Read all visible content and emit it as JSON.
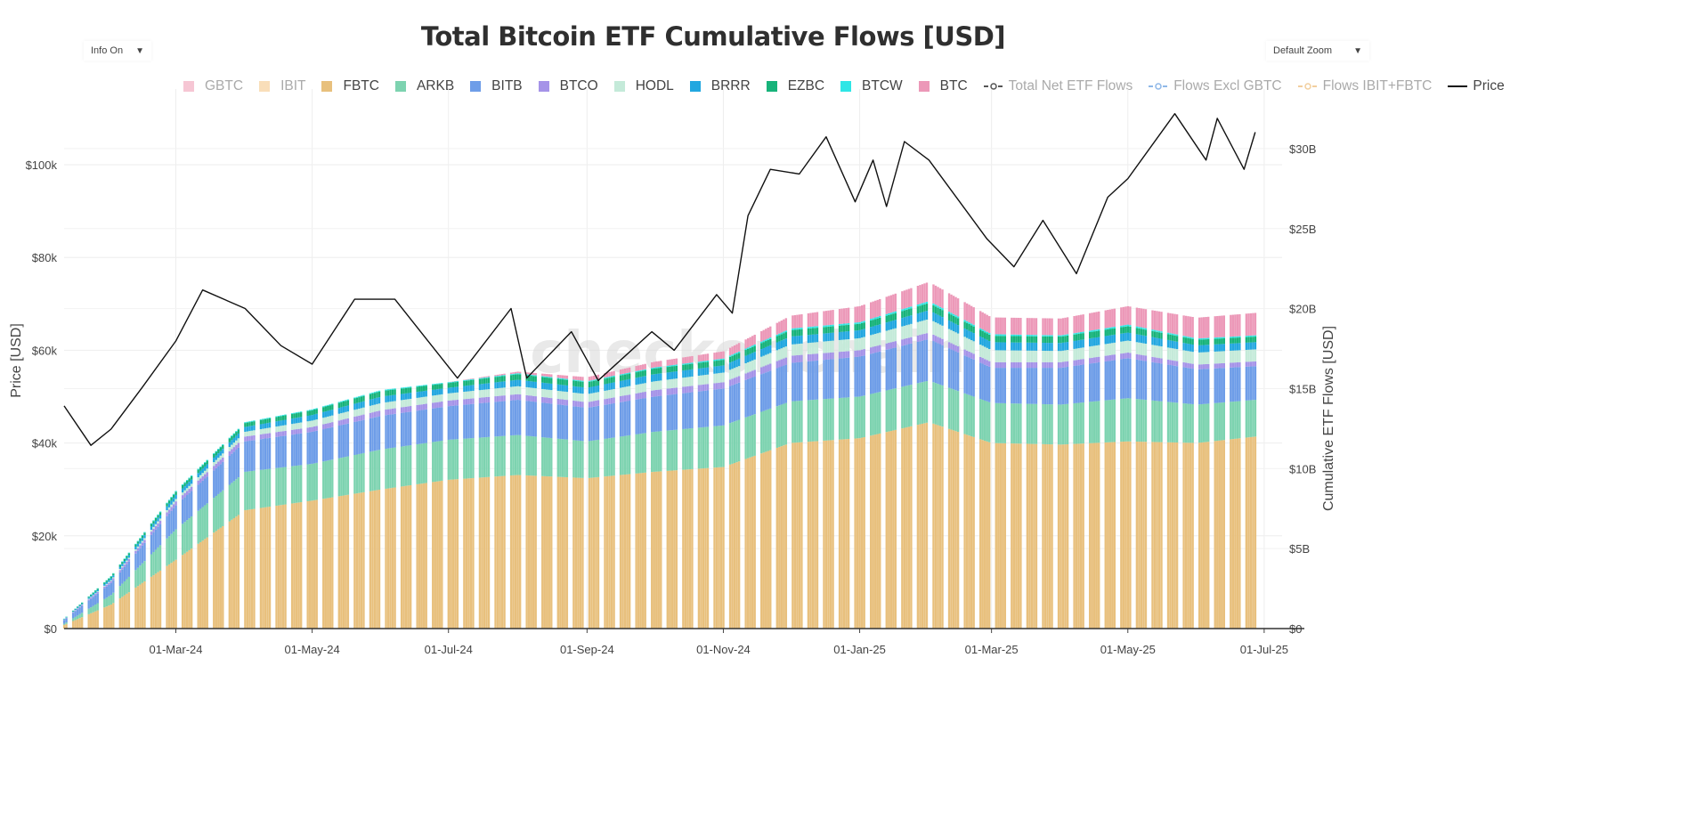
{
  "title": "Total Bitcoin ETF Cumulative Flows [USD]",
  "controls": {
    "info_label": "Info On",
    "zoom_label": "Default Zoom",
    "arrow": "▼"
  },
  "watermark": "checkonchain",
  "legend": [
    {
      "name": "GBTC",
      "color": "#f4b8c9",
      "visible": false,
      "kind": "bar"
    },
    {
      "name": "IBIT",
      "color": "#f7d6a8",
      "visible": false,
      "kind": "bar"
    },
    {
      "name": "FBTC",
      "color": "#e8c07d",
      "visible": true,
      "kind": "bar"
    },
    {
      "name": "ARKB",
      "color": "#7dd3b0",
      "visible": true,
      "kind": "bar"
    },
    {
      "name": "BITB",
      "color": "#6e9de8",
      "visible": true,
      "kind": "bar"
    },
    {
      "name": "BTCO",
      "color": "#a593e8",
      "visible": true,
      "kind": "bar"
    },
    {
      "name": "HODL",
      "color": "#c4ead9",
      "visible": true,
      "kind": "bar"
    },
    {
      "name": "BRRR",
      "color": "#22a7e0",
      "visible": true,
      "kind": "bar"
    },
    {
      "name": "EZBC",
      "color": "#17b37a",
      "visible": true,
      "kind": "bar"
    },
    {
      "name": "BTCW",
      "color": "#2ee6e6",
      "visible": true,
      "kind": "bar"
    },
    {
      "name": "BTC",
      "color": "#ec98b8",
      "visible": true,
      "kind": "bar"
    },
    {
      "name": "Total Net ETF Flows",
      "color": "#555555",
      "visible": false,
      "kind": "line-marker"
    },
    {
      "name": "Flows Excl GBTC",
      "color": "#8fb8e8",
      "visible": false,
      "kind": "line-marker"
    },
    {
      "name": "Flows IBIT+FBTC",
      "color": "#f2cf9e",
      "visible": false,
      "kind": "line-marker"
    },
    {
      "name": "Price",
      "color": "#111111",
      "visible": true,
      "kind": "line"
    }
  ],
  "chart_data": {
    "type": "bar",
    "stacked": true,
    "title": "Total Bitcoin ETF Cumulative Flows [USD]",
    "ylabel_left": "Price [USD]",
    "ylabel_right": "Cumulative ETF Flows [USD]",
    "ylim_left": [
      0,
      110000
    ],
    "ylim_right": [
      0,
      33
    ],
    "ylim_right_unit": "USD billions",
    "xlim": [
      "2024-01-11",
      "2025-06-27"
    ],
    "x_ticks": [
      "01-Mar-24",
      "01-May-24",
      "01-Jul-24",
      "01-Sep-24",
      "01-Nov-24",
      "01-Jan-25",
      "01-Mar-25",
      "01-May-25",
      "01-Jul-25"
    ],
    "x_tick_dates": [
      "2024-03-01",
      "2024-05-01",
      "2024-07-01",
      "2024-09-01",
      "2024-11-01",
      "2025-01-01",
      "2025-03-01",
      "2025-05-01",
      "2025-07-01"
    ],
    "y_ticks_left": [
      "$0",
      "$20k",
      "$40k",
      "$60k",
      "$80k",
      "$100k"
    ],
    "y_tick_values_left": [
      0,
      20000,
      40000,
      60000,
      80000,
      100000
    ],
    "y_ticks_right": [
      "$0",
      "$5B",
      "$10B",
      "$15B",
      "$20B",
      "$25B",
      "$30B"
    ],
    "y_tick_values_right": [
      0,
      5,
      10,
      15,
      20,
      25,
      30
    ],
    "grid": true,
    "legend_position": "top",
    "dates": [
      "2024-01-11",
      "2024-02-01",
      "2024-03-01",
      "2024-04-01",
      "2024-05-01",
      "2024-06-01",
      "2024-07-01",
      "2024-08-01",
      "2024-09-01",
      "2024-10-01",
      "2024-11-01",
      "2024-12-01",
      "2025-01-01",
      "2025-02-01",
      "2025-03-01",
      "2025-04-01",
      "2025-05-01",
      "2025-06-01",
      "2025-06-27"
    ],
    "series": [
      {
        "name": "FBTC",
        "values": [
          0.23,
          1.5,
          4.3,
          7.4,
          8.0,
          8.7,
          9.3,
          9.6,
          9.4,
          9.8,
          10.1,
          11.6,
          11.9,
          12.9,
          11.6,
          11.5,
          11.7,
          11.6,
          12.0
        ]
      },
      {
        "name": "ARKB",
        "values": [
          0.07,
          0.6,
          1.9,
          2.4,
          2.3,
          2.5,
          2.5,
          2.5,
          2.3,
          2.5,
          2.6,
          2.6,
          2.6,
          2.6,
          2.5,
          2.5,
          2.7,
          2.4,
          2.3
        ]
      },
      {
        "name": "BITB",
        "values": [
          0.24,
          0.75,
          1.5,
          1.9,
          2.0,
          2.1,
          2.1,
          2.2,
          2.1,
          2.2,
          2.3,
          2.4,
          2.5,
          2.6,
          2.2,
          2.3,
          2.5,
          2.2,
          2.1
        ]
      },
      {
        "name": "BTCO",
        "values": [
          0.02,
          0.12,
          0.25,
          0.3,
          0.3,
          0.35,
          0.35,
          0.35,
          0.35,
          0.4,
          0.4,
          0.45,
          0.4,
          0.4,
          0.35,
          0.35,
          0.35,
          0.3,
          0.3
        ]
      },
      {
        "name": "HODL",
        "values": [
          0.01,
          0.06,
          0.15,
          0.3,
          0.4,
          0.45,
          0.45,
          0.5,
          0.5,
          0.55,
          0.6,
          0.7,
          0.75,
          0.85,
          0.75,
          0.7,
          0.75,
          0.75,
          0.75
        ]
      },
      {
        "name": "BRRR",
        "values": [
          0.02,
          0.12,
          0.25,
          0.3,
          0.35,
          0.4,
          0.35,
          0.4,
          0.4,
          0.45,
          0.45,
          0.5,
          0.5,
          0.55,
          0.5,
          0.5,
          0.5,
          0.45,
          0.45
        ]
      },
      {
        "name": "EZBC",
        "values": [
          0.02,
          0.1,
          0.2,
          0.25,
          0.3,
          0.35,
          0.3,
          0.35,
          0.35,
          0.35,
          0.35,
          0.4,
          0.4,
          0.45,
          0.4,
          0.4,
          0.4,
          0.35,
          0.35
        ]
      },
      {
        "name": "BTCW",
        "values": [
          0.01,
          0.03,
          0.05,
          0.05,
          0.05,
          0.06,
          0.05,
          0.06,
          0.06,
          0.07,
          0.08,
          0.1,
          0.1,
          0.12,
          0.1,
          0.08,
          0.1,
          0.08,
          0.08
        ]
      },
      {
        "name": "BTC",
        "values": [
          0,
          0,
          0,
          0,
          0,
          0,
          0,
          0.1,
          0.25,
          0.35,
          0.45,
          0.8,
          1.0,
          1.2,
          1.05,
          1.05,
          1.15,
          1.3,
          1.4
        ]
      }
    ],
    "price": {
      "name": "Price",
      "dates": [
        "2024-01-11",
        "2024-01-23",
        "2024-02-01",
        "2024-02-15",
        "2024-03-01",
        "2024-03-13",
        "2024-04-01",
        "2024-04-17",
        "2024-05-01",
        "2024-05-20",
        "2024-06-07",
        "2024-07-05",
        "2024-07-29",
        "2024-08-05",
        "2024-08-25",
        "2024-09-06",
        "2024-09-30",
        "2024-10-10",
        "2024-10-29",
        "2024-11-05",
        "2024-11-12",
        "2024-11-22",
        "2024-12-05",
        "2024-12-17",
        "2024-12-30",
        "2025-01-07",
        "2025-01-13",
        "2025-01-21",
        "2025-02-01",
        "2025-02-27",
        "2025-03-11",
        "2025-03-24",
        "2025-04-08",
        "2025-04-22",
        "2025-05-01",
        "2025-05-22",
        "2025-06-05",
        "2025-06-10",
        "2025-06-22",
        "2025-06-27"
      ],
      "values": [
        48000,
        39500,
        43000,
        52000,
        62000,
        73000,
        69000,
        61000,
        57000,
        71000,
        71000,
        54000,
        69000,
        54000,
        64000,
        53500,
        64000,
        60000,
        72000,
        68000,
        89000,
        99000,
        98000,
        106000,
        92000,
        101000,
        91000,
        105000,
        101000,
        84000,
        78000,
        88000,
        76500,
        93000,
        97000,
        111000,
        101000,
        110000,
        99000,
        107000
      ]
    }
  }
}
